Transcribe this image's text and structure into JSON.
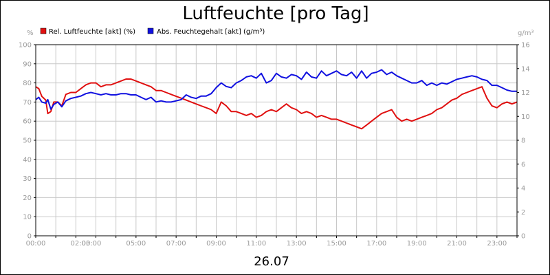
{
  "chart_data": {
    "type": "line",
    "title": "Luftfeuchte [pro Tag]",
    "date": "26.07",
    "y_left_unit": "%",
    "y_right_unit": "g/m³",
    "ylim_left": [
      0,
      100
    ],
    "ylim_right": [
      0,
      16
    ],
    "y_left_ticks": [
      "0",
      "10",
      "20",
      "30",
      "40",
      "50",
      "60",
      "70",
      "80",
      "90",
      "100"
    ],
    "y_right_ticks": [
      "0",
      "2",
      "4",
      "6",
      "8",
      "10",
      "12",
      "14",
      "16"
    ],
    "xlim_hours": [
      0,
      24
    ],
    "x_ticks": [
      {
        "label": "00:00",
        "hour": 0
      },
      {
        "label": "02:00",
        "hour": 2
      },
      {
        "label": "03:00",
        "hour": 3
      },
      {
        "label": "05:00",
        "hour": 5
      },
      {
        "label": "07:00",
        "hour": 7
      },
      {
        "label": "09:00",
        "hour": 9
      },
      {
        "label": "11:00",
        "hour": 11
      },
      {
        "label": "13:00",
        "hour": 13
      },
      {
        "label": "15:00",
        "hour": 15
      },
      {
        "label": "17:00",
        "hour": 17
      },
      {
        "label": "19:00",
        "hour": 19
      },
      {
        "label": "21:00",
        "hour": 21
      },
      {
        "label": "23:00",
        "hour": 23
      }
    ],
    "grid": true,
    "legend_position": "top-left",
    "series": [
      {
        "name": "Rel. Luftfeuchte [akt] (%)",
        "color": "#e01010",
        "axis": "left",
        "x": [
          0,
          0.15,
          0.3,
          0.5,
          0.6,
          0.75,
          0.9,
          1.1,
          1.3,
          1.5,
          1.75,
          2,
          2.25,
          2.5,
          2.75,
          3,
          3.25,
          3.5,
          3.75,
          4,
          4.25,
          4.5,
          4.75,
          5,
          5.25,
          5.5,
          5.75,
          6,
          6.25,
          6.5,
          6.75,
          7,
          7.25,
          7.5,
          7.75,
          8,
          8.25,
          8.5,
          8.75,
          9,
          9.25,
          9.5,
          9.75,
          10,
          10.25,
          10.5,
          10.75,
          11,
          11.25,
          11.5,
          11.75,
          12,
          12.25,
          12.5,
          12.75,
          13,
          13.25,
          13.5,
          13.75,
          14,
          14.25,
          14.5,
          14.75,
          15,
          15.25,
          15.5,
          15.75,
          16,
          16.25,
          16.5,
          16.75,
          17,
          17.25,
          17.5,
          17.75,
          18,
          18.25,
          18.5,
          18.75,
          19,
          19.25,
          19.5,
          19.75,
          20,
          20.25,
          20.5,
          20.75,
          21,
          21.25,
          21.5,
          21.75,
          22,
          22.25,
          22.5,
          22.75,
          23,
          23.25,
          23.5,
          23.75,
          24
        ],
        "values": [
          78,
          77,
          73,
          71,
          64,
          65,
          70,
          70,
          68,
          74,
          75,
          75,
          77,
          79,
          80,
          80,
          78,
          79,
          79,
          80,
          81,
          82,
          82,
          81,
          80,
          79,
          78,
          76,
          76,
          75,
          74,
          73,
          72,
          71,
          70,
          69,
          68,
          67,
          66,
          64,
          70,
          68,
          65,
          65,
          64,
          63,
          64,
          62,
          63,
          65,
          66,
          65,
          67,
          69,
          67,
          66,
          64,
          65,
          64,
          62,
          63,
          62,
          61,
          61,
          60,
          59,
          58,
          57,
          56,
          58,
          60,
          62,
          64,
          65,
          66,
          62,
          60,
          61,
          60,
          61,
          62,
          63,
          64,
          66,
          67,
          69,
          71,
          72,
          74,
          75,
          76,
          77,
          78,
          72,
          68,
          67,
          69,
          70,
          69,
          70
        ]
      },
      {
        "name": "Abs. Feuchtegehalt [akt] (g/m³)",
        "color": "#1010e0",
        "axis": "right",
        "x": [
          0,
          0.15,
          0.3,
          0.5,
          0.6,
          0.75,
          0.9,
          1.1,
          1.3,
          1.5,
          1.75,
          2,
          2.25,
          2.5,
          2.75,
          3,
          3.25,
          3.5,
          3.75,
          4,
          4.25,
          4.5,
          4.75,
          5,
          5.25,
          5.5,
          5.75,
          6,
          6.25,
          6.5,
          6.75,
          7,
          7.25,
          7.5,
          7.75,
          8,
          8.25,
          8.5,
          8.75,
          9,
          9.25,
          9.5,
          9.75,
          10,
          10.25,
          10.5,
          10.75,
          11,
          11.25,
          11.5,
          11.75,
          12,
          12.25,
          12.5,
          12.75,
          13,
          13.25,
          13.5,
          13.75,
          14,
          14.25,
          14.5,
          14.75,
          15,
          15.25,
          15.5,
          15.75,
          16,
          16.25,
          16.5,
          16.75,
          17,
          17.25,
          17.5,
          17.75,
          18,
          18.25,
          18.5,
          18.75,
          19,
          19.25,
          19.5,
          19.75,
          20,
          20.25,
          20.5,
          20.75,
          21,
          21.25,
          21.5,
          21.75,
          22,
          22.25,
          22.5,
          22.75,
          23,
          23.25,
          23.5,
          23.75,
          24
        ],
        "values": [
          11.4,
          11.6,
          11.2,
          11.1,
          11.4,
          10.6,
          11.0,
          11.2,
          10.8,
          11.3,
          11.5,
          11.6,
          11.7,
          11.9,
          12.0,
          11.9,
          11.8,
          11.9,
          11.8,
          11.8,
          11.9,
          11.9,
          11.8,
          11.8,
          11.6,
          11.4,
          11.6,
          11.2,
          11.3,
          11.2,
          11.2,
          11.3,
          11.4,
          11.8,
          11.6,
          11.5,
          11.7,
          11.7,
          11.9,
          12.4,
          12.8,
          12.5,
          12.4,
          12.8,
          13.0,
          13.3,
          13.4,
          13.2,
          13.6,
          12.8,
          13.0,
          13.6,
          13.3,
          13.2,
          13.5,
          13.4,
          13.1,
          13.7,
          13.3,
          13.2,
          13.8,
          13.4,
          13.6,
          13.8,
          13.5,
          13.4,
          13.7,
          13.2,
          13.8,
          13.2,
          13.6,
          13.7,
          13.9,
          13.5,
          13.7,
          13.4,
          13.2,
          13.0,
          12.8,
          12.8,
          13.0,
          12.6,
          12.8,
          12.6,
          12.8,
          12.7,
          12.9,
          13.1,
          13.2,
          13.3,
          13.4,
          13.3,
          13.1,
          13.0,
          12.6,
          12.6,
          12.4,
          12.2,
          12.1,
          12.1
        ]
      }
    ]
  }
}
